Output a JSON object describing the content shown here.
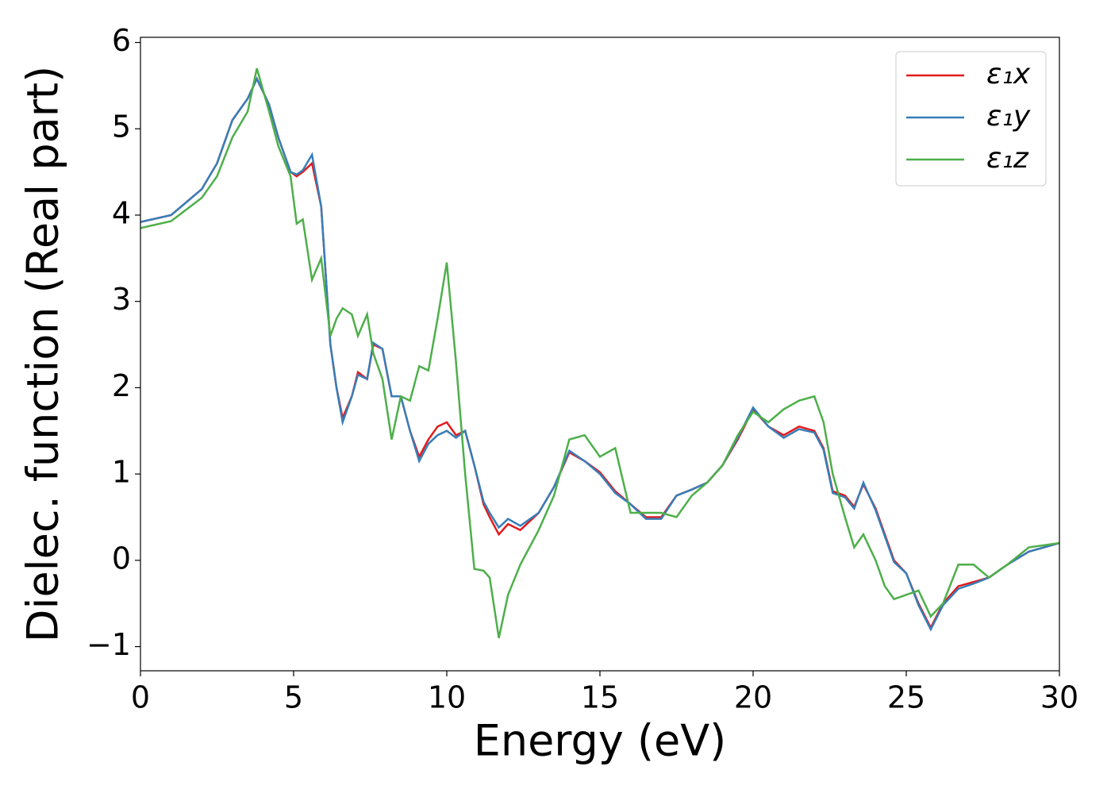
{
  "chart_data": {
    "type": "line",
    "xlabel": "Energy (eV)",
    "ylabel": "Dielec. function (Real part)",
    "x": [
      0,
      1,
      2,
      2.5,
      3,
      3.5,
      3.8,
      4.2,
      4.5,
      4.9,
      5.1,
      5.3,
      5.6,
      5.9,
      6.2,
      6.4,
      6.6,
      6.9,
      7.1,
      7.4,
      7.6,
      7.9,
      8.2,
      8.5,
      8.8,
      9.1,
      9.4,
      9.7,
      10,
      10.3,
      10.6,
      10.9,
      11.2,
      11.4,
      11.7,
      12,
      12.4,
      13,
      13.5,
      14,
      14.5,
      15,
      15.5,
      16,
      16.5,
      17,
      17.5,
      18,
      18.5,
      19,
      19.5,
      20,
      20.5,
      21,
      21.5,
      22,
      22.3,
      22.6,
      23,
      23.3,
      23.6,
      24,
      24.3,
      24.6,
      25,
      25.4,
      25.8,
      26.2,
      26.7,
      27.2,
      27.7,
      28.3,
      29,
      30
    ],
    "series": [
      {
        "name": "ε₁x",
        "color": "#e41a1c",
        "values": [
          3.92,
          4.0,
          4.3,
          4.6,
          5.1,
          5.35,
          5.58,
          5.28,
          4.9,
          4.5,
          4.45,
          4.5,
          4.6,
          4.1,
          2.5,
          2.0,
          1.65,
          1.9,
          2.18,
          2.1,
          2.5,
          2.45,
          1.9,
          1.9,
          1.5,
          1.2,
          1.4,
          1.55,
          1.6,
          1.45,
          1.5,
          1.1,
          0.65,
          0.5,
          0.3,
          0.42,
          0.35,
          0.55,
          0.85,
          1.25,
          1.15,
          1.02,
          0.8,
          0.65,
          0.5,
          0.5,
          0.75,
          0.82,
          0.9,
          1.1,
          1.4,
          1.75,
          1.55,
          1.45,
          1.55,
          1.5,
          1.3,
          0.8,
          0.75,
          0.62,
          0.88,
          0.6,
          0.3,
          0.0,
          -0.15,
          -0.5,
          -0.78,
          -0.5,
          -0.3,
          -0.25,
          -0.2,
          -0.05,
          0.1,
          0.2
        ]
      },
      {
        "name": "ε₁y",
        "color": "#377eb8",
        "values": [
          3.92,
          4.0,
          4.3,
          4.6,
          5.1,
          5.35,
          5.58,
          5.28,
          4.9,
          4.5,
          4.47,
          4.52,
          4.7,
          4.1,
          2.5,
          2.0,
          1.6,
          1.9,
          2.15,
          2.1,
          2.52,
          2.45,
          1.9,
          1.9,
          1.5,
          1.15,
          1.35,
          1.45,
          1.5,
          1.42,
          1.5,
          1.1,
          0.68,
          0.55,
          0.38,
          0.48,
          0.4,
          0.55,
          0.85,
          1.27,
          1.15,
          1.0,
          0.78,
          0.65,
          0.48,
          0.48,
          0.75,
          0.82,
          0.9,
          1.1,
          1.42,
          1.77,
          1.55,
          1.42,
          1.52,
          1.48,
          1.28,
          0.78,
          0.73,
          0.6,
          0.9,
          0.58,
          0.28,
          -0.02,
          -0.15,
          -0.52,
          -0.8,
          -0.52,
          -0.33,
          -0.27,
          -0.2,
          -0.05,
          0.1,
          0.2
        ]
      },
      {
        "name": "ε₁z",
        "color": "#4daf4a",
        "values": [
          3.85,
          3.93,
          4.2,
          4.45,
          4.9,
          5.2,
          5.7,
          5.2,
          4.8,
          4.45,
          3.9,
          3.95,
          3.25,
          3.5,
          2.6,
          2.8,
          2.92,
          2.85,
          2.6,
          2.85,
          2.4,
          2.1,
          1.4,
          1.9,
          1.85,
          2.25,
          2.2,
          2.8,
          3.45,
          2.3,
          1.0,
          -0.1,
          -0.12,
          -0.2,
          -0.9,
          -0.4,
          -0.05,
          0.35,
          0.75,
          1.4,
          1.45,
          1.2,
          1.3,
          0.55,
          0.55,
          0.55,
          0.5,
          0.75,
          0.9,
          1.1,
          1.45,
          1.72,
          1.6,
          1.75,
          1.85,
          1.9,
          1.6,
          1.0,
          0.5,
          0.15,
          0.3,
          0.0,
          -0.3,
          -0.45,
          -0.4,
          -0.35,
          -0.65,
          -0.5,
          -0.05,
          -0.05,
          -0.2,
          -0.05,
          0.15,
          0.2
        ]
      }
    ],
    "xlim": [
      0,
      30
    ],
    "xticks": [
      0,
      5,
      10,
      15,
      20,
      25,
      30
    ],
    "ylim": [
      -1.28,
      6.06
    ],
    "yticks": [
      {
        "value": -1,
        "label": "−1"
      },
      0,
      1,
      2,
      3,
      4,
      5,
      6
    ],
    "legend": "upper right"
  }
}
